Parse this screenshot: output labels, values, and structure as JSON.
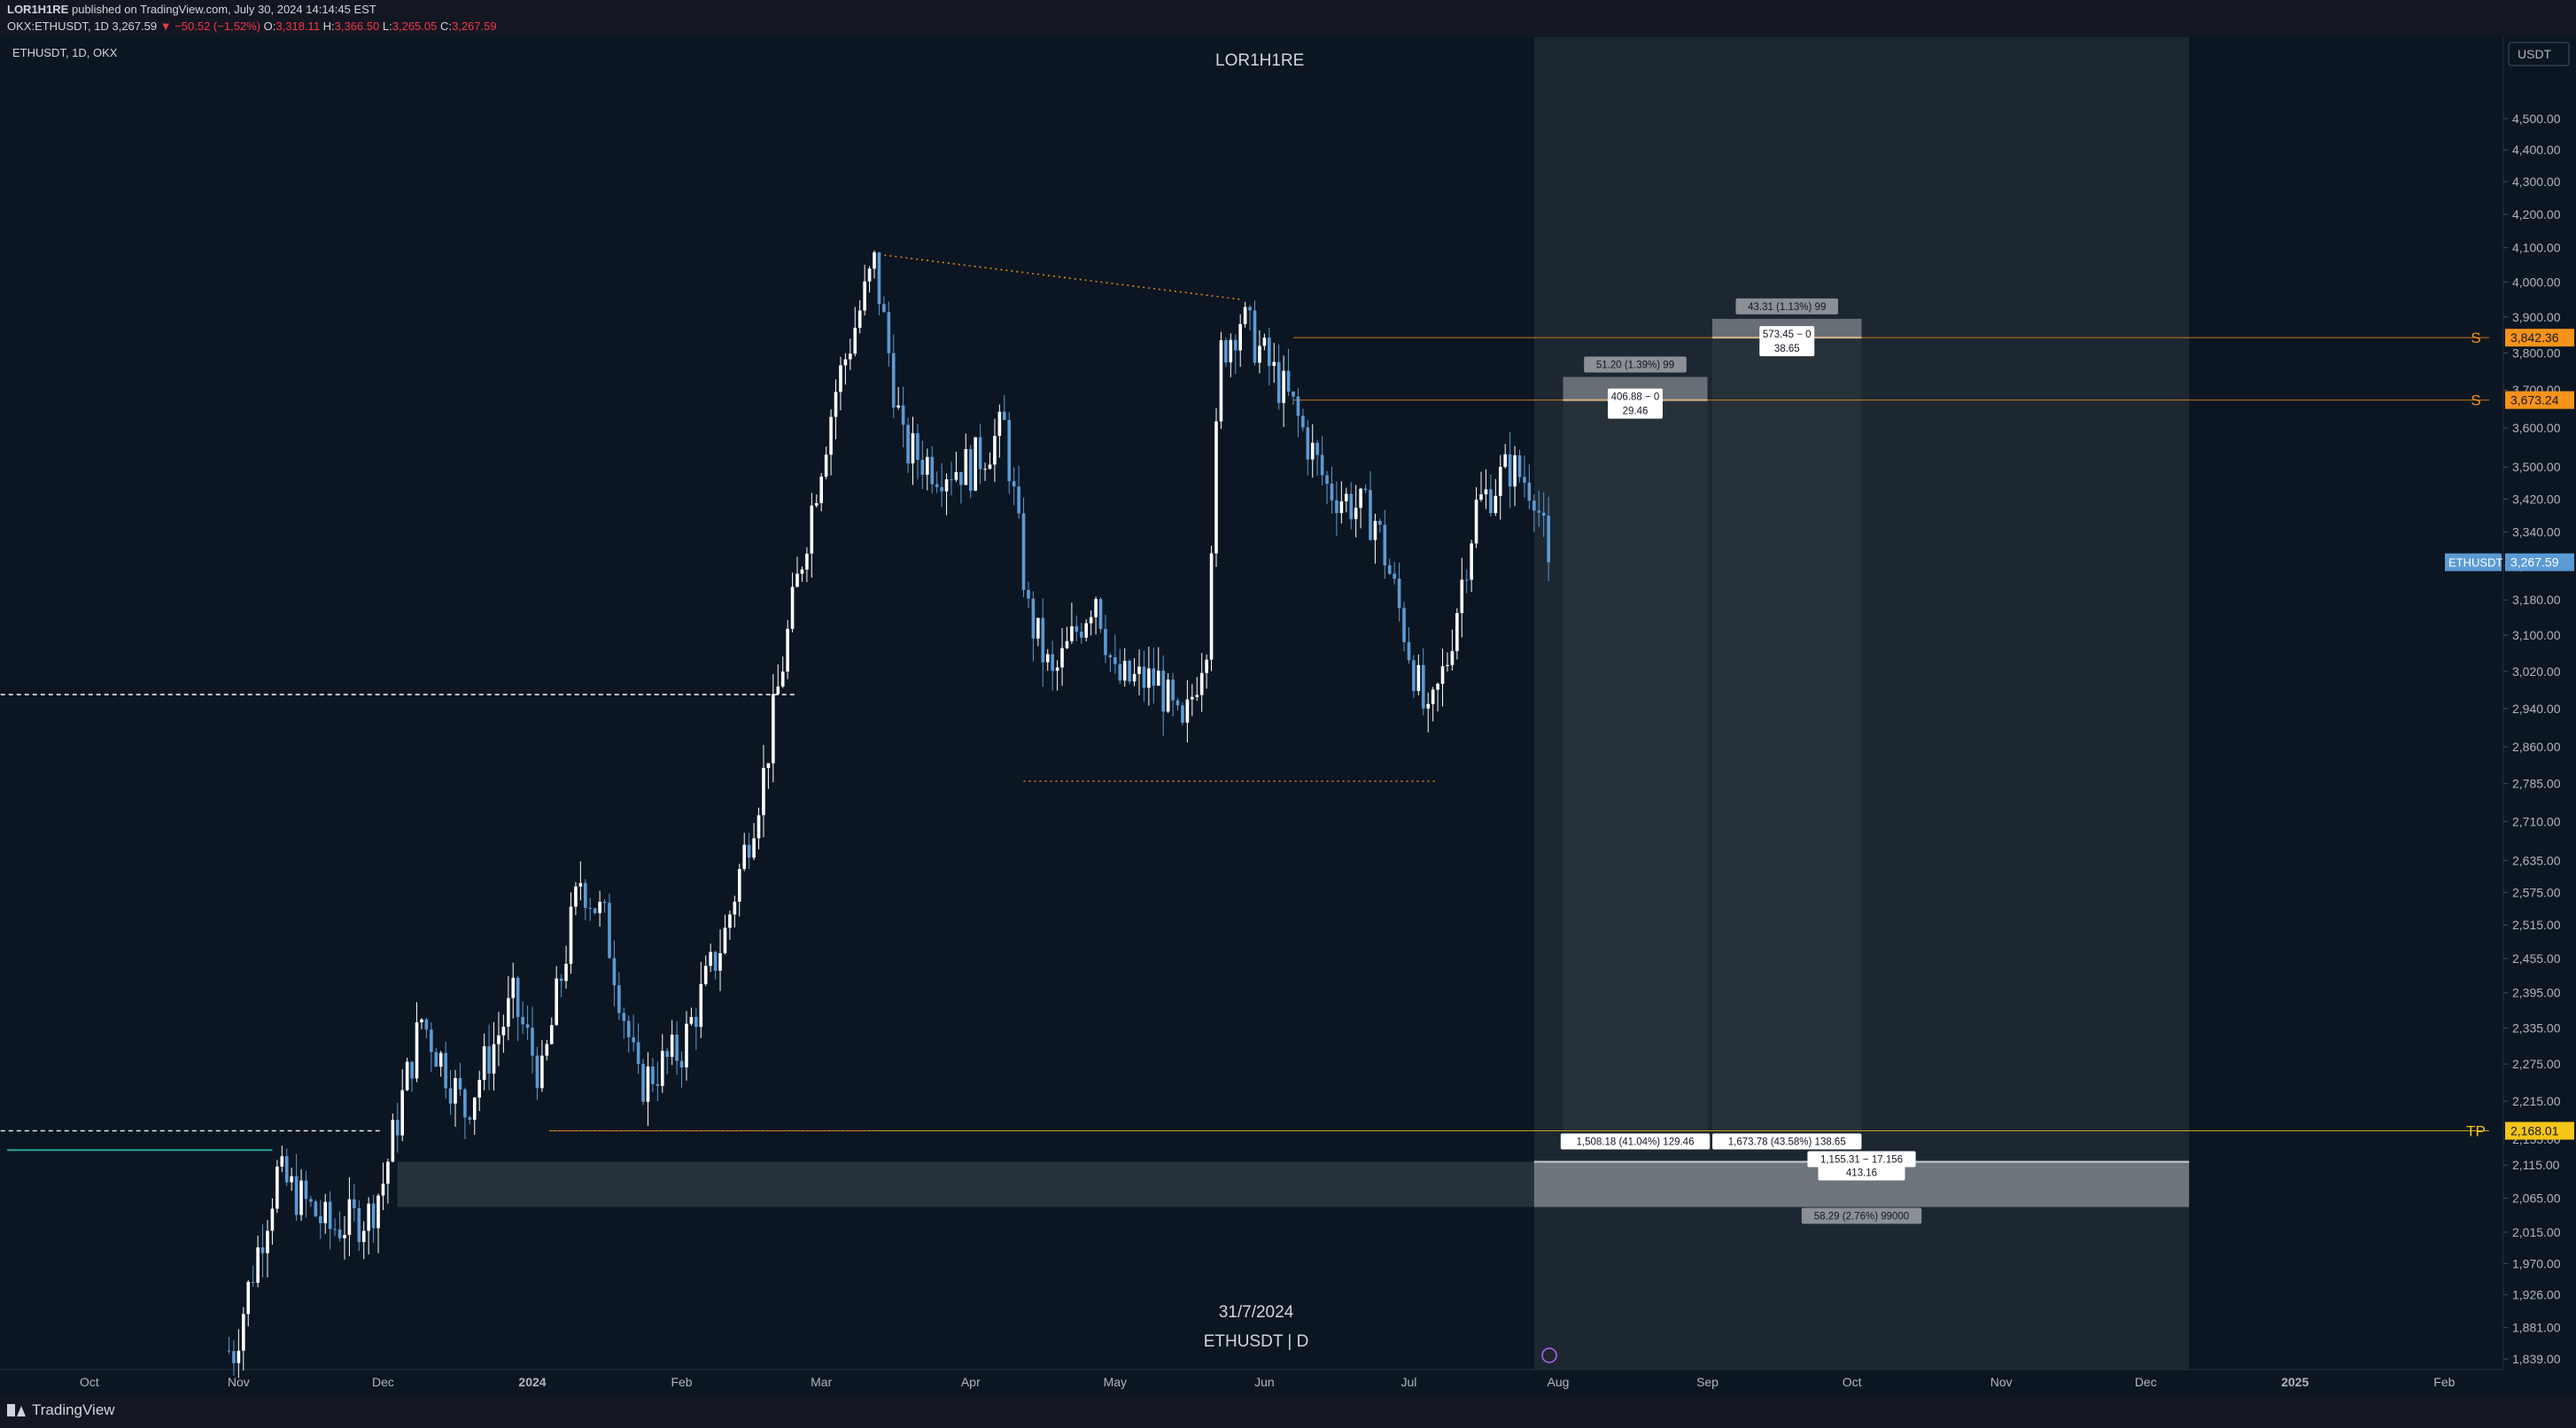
{
  "header": {
    "publisher": "LOR1H1RE",
    "published_text": "published on TradingView.com, July 30, 2024 14:14:45 EST",
    "ticker": "OKX:ETHUSDT, 1D",
    "last": "3,267.59",
    "change": "▼ −50.52 (−1.52%)",
    "o_label": "O:",
    "o": "3,318.11",
    "h_label": "H:",
    "h": "3,366.50",
    "l_label": "L:",
    "l": "3,265.05",
    "c_label": "C:",
    "c": "3,267.59"
  },
  "symbol_label": "ETHUSDT, 1D, OKX",
  "author_watermark": "LOR1H1RE",
  "watermark": {
    "date": "31/7/2024",
    "symbol": "ETHUSDT | D"
  },
  "footer": {
    "brand": "TradingView"
  },
  "colors": {
    "background": "#0b1622",
    "up": "#ffffff",
    "down": "#5b9bd5",
    "orange": "#f7931a",
    "tp": "#f5c518",
    "price": "#5b9bd5"
  },
  "chart_data": {
    "type": "candlestick",
    "title": "",
    "currency": "USDT",
    "scale": "log",
    "ylim": [
      1820,
      4620
    ],
    "y_ticks": [
      "4,500.00",
      "4,400.00",
      "4,300.00",
      "4,200.00",
      "4,100.00",
      "4,000.00",
      "3,900.00",
      "3,800.00",
      "3,700.00",
      "3,600.00",
      "3,500.00",
      "3,420.00",
      "3,340.00",
      "3,260.00",
      "3,180.00",
      "3,100.00",
      "3,020.00",
      "2,940.00",
      "2,860.00",
      "2,785.00",
      "2,710.00",
      "2,635.00",
      "2,575.00",
      "2,515.00",
      "2,455.00",
      "2,395.00",
      "2,335.00",
      "2,275.00",
      "2,215.00",
      "2,155.00",
      "2,115.00",
      "2,065.00",
      "2,015.00",
      "1,970.00",
      "1,926.00",
      "1,881.00",
      "1,839.00"
    ],
    "x_ticks": [
      "Oct",
      "Nov",
      "Dec",
      "2024",
      "Feb",
      "Mar",
      "Apr",
      "May",
      "Jun",
      "Jul",
      "Aug",
      "Sep",
      "Oct",
      "Nov",
      "Dec",
      "2025",
      "Feb"
    ],
    "x_tick_dates": [
      "2023-10-01",
      "2023-11-01",
      "2023-12-01",
      "2024-01-01",
      "2024-02-01",
      "2024-03-01",
      "2024-04-01",
      "2024-05-01",
      "2024-06-01",
      "2024-07-01",
      "2024-08-01",
      "2024-09-01",
      "2024-10-01",
      "2024-11-01",
      "2024-12-01",
      "2025-01-01",
      "2025-02-01"
    ],
    "price_series": [
      [
        "2023-10-31",
        1850
      ],
      [
        "2023-11-09",
        2100
      ],
      [
        "2023-11-20",
        2020
      ],
      [
        "2023-11-28",
        2040
      ],
      [
        "2023-12-01",
        2090
      ],
      [
        "2023-12-09",
        2350
      ],
      [
        "2023-12-18",
        2200
      ],
      [
        "2023-12-28",
        2380
      ],
      [
        "2024-01-03",
        2250
      ],
      [
        "2024-01-11",
        2600
      ],
      [
        "2024-01-16",
        2520
      ],
      [
        "2024-01-23",
        2240
      ],
      [
        "2024-02-01",
        2300
      ],
      [
        "2024-02-10",
        2500
      ],
      [
        "2024-02-18",
        2800
      ],
      [
        "2024-02-28",
        3400
      ],
      [
        "2024-03-04",
        3700
      ],
      [
        "2024-03-12",
        4050
      ],
      [
        "2024-03-18",
        3550
      ],
      [
        "2024-03-25",
        3500
      ],
      [
        "2024-04-01",
        3500
      ],
      [
        "2024-04-08",
        3600
      ],
      [
        "2024-04-13",
        3150
      ],
      [
        "2024-04-18",
        3000
      ],
      [
        "2024-04-27",
        3200
      ],
      [
        "2024-05-01",
        3000
      ],
      [
        "2024-05-10",
        3000
      ],
      [
        "2024-05-15",
        2880
      ],
      [
        "2024-05-20",
        3100
      ],
      [
        "2024-05-23",
        3800
      ],
      [
        "2024-05-27",
        3900
      ],
      [
        "2024-06-07",
        3650
      ],
      [
        "2024-06-14",
        3450
      ],
      [
        "2024-06-24",
        3370
      ],
      [
        "2024-07-05",
        2900
      ],
      [
        "2024-07-09",
        3050
      ],
      [
        "2024-07-15",
        3400
      ],
      [
        "2024-07-22",
        3500
      ],
      [
        "2024-07-27",
        3450
      ],
      [
        "2024-07-30",
        3267.59
      ]
    ],
    "swing_lines": [
      {
        "kind": "resistance",
        "style": "orange-dotted",
        "from": [
          "2024-03-13",
          4080
        ],
        "to": [
          "2024-05-27",
          3950
        ]
      },
      {
        "kind": "support",
        "style": "orange-dotted",
        "from": [
          "2024-04-12",
          2790
        ],
        "to": [
          "2024-07-07",
          2790
        ]
      },
      {
        "kind": "level",
        "style": "white-dashed",
        "from": [
          "2023-09-01",
          2970
        ],
        "to": [
          "2024-02-25",
          2970
        ]
      },
      {
        "kind": "level",
        "style": "white-dashed",
        "from": [
          "2023-09-01",
          2168
        ],
        "to": [
          "2023-12-01",
          2168
        ]
      },
      {
        "kind": "level",
        "style": "red-dotted",
        "from": [
          "2024-01-05",
          2168
        ],
        "to": [
          "2024-03-12",
          2168
        ]
      }
    ],
    "levels": [
      {
        "label": "S",
        "price": 3842.36,
        "price_label": "3,842.36",
        "color": "#f7931a"
      },
      {
        "label": "S",
        "price": 3673.24,
        "price_label": "3,673.24",
        "color": "#f7931a"
      },
      {
        "label": "TP",
        "price": 2168.01,
        "price_label": "2,168.01",
        "color": "#f5c518"
      }
    ],
    "current_price": {
      "symbol": "ETHUSDT",
      "price": 3267.59,
      "price_label": "3,267.59"
    },
    "projection_zone": {
      "from": "2024-07-27",
      "to": "2024-12-10"
    },
    "positions": [
      {
        "from": "2024-08-02",
        "to": "2024-09-01",
        "entry_top": 3735,
        "entry_bottom": 3673.24,
        "stop_label": "51.20 (1.39%) 99",
        "entry_label": "406.88 − 0",
        "entry_sub": "29.46",
        "target": 2168.01,
        "target_label": "1,508.18 (41.04%) 129.46"
      },
      {
        "from": "2024-09-02",
        "to": "2024-10-03",
        "entry_top": 3895,
        "entry_bottom": 3842.36,
        "stop_label": "43.31 (1.13%) 99",
        "entry_label": "573.45 − 0",
        "entry_sub": "38.65",
        "target": 2168.01,
        "target_label": "1,673.78 (43.58%) 138.65"
      }
    ],
    "demand_zone": {
      "from": "2023-12-04",
      "to": "2024-12-10",
      "top": 2120,
      "bottom": 2052,
      "label": "1,155.31 − 17.156",
      "sub": "413.16",
      "bottom_label": "58.29 (2.76%) 99000"
    }
  }
}
